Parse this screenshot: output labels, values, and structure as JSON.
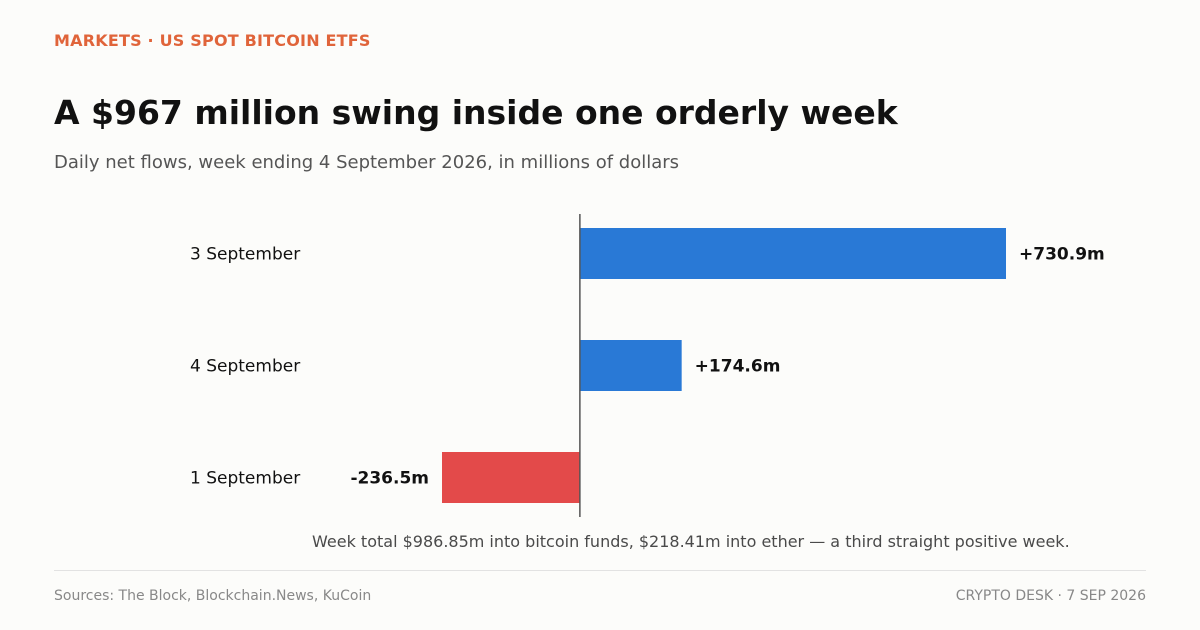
{
  "header": {
    "kicker": "MARKETS · US SPOT BITCOIN ETFS",
    "title": "A $967 million swing inside one orderly week",
    "subtitle": "Daily net flows, week ending 4 September 2026, in millions of dollars"
  },
  "chart_data": {
    "type": "bar",
    "orientation": "horizontal",
    "categories": [
      "3 September",
      "4 September",
      "1 September"
    ],
    "values": [
      730.9,
      174.6,
      -236.5
    ],
    "value_labels": [
      "+730.9m",
      "+174.6m",
      "-236.5m"
    ],
    "xlim": [
      -236.5,
      730.9
    ],
    "grid": false,
    "colors": {
      "positive": "#2979d6",
      "negative": "#e34a4a",
      "axis": "#555555"
    }
  },
  "note": "Week total $986.85m into bitcoin funds, $218.41m into ether — a third straight positive week.",
  "footer": {
    "sources": "Sources: The Block, Blockchain.News, KuCoin",
    "credit": "CRYPTO DESK  ·  7 SEP 2026"
  }
}
